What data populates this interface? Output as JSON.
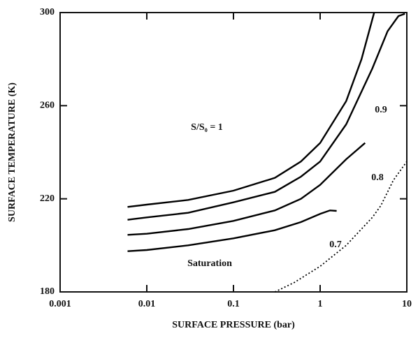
{
  "chart_data": {
    "type": "line",
    "xlabel": "SURFACE PRESSURE (bar)",
    "ylabel": "SURFACE TEMPERATURE (K)",
    "xscale": "log",
    "xlim": [
      0.001,
      10
    ],
    "xticks": [
      0.001,
      0.01,
      0.1,
      1,
      10
    ],
    "ylim": [
      180,
      300
    ],
    "yticks": [
      180,
      220,
      260,
      300
    ],
    "series": [
      {
        "name": "S/S₀ = 1",
        "color": "#000000",
        "style": "solid",
        "x": [
          0.006,
          0.01,
          0.03,
          0.1,
          0.3,
          0.6,
          1,
          2,
          3,
          4.2
        ],
        "values": [
          216.5,
          217.5,
          219.5,
          223.5,
          229,
          236,
          244,
          262,
          280,
          300
        ]
      },
      {
        "name": "0.9",
        "color": "#000000",
        "style": "solid",
        "x": [
          0.006,
          0.01,
          0.03,
          0.1,
          0.3,
          0.6,
          1,
          2,
          4,
          6,
          8,
          9.5
        ],
        "values": [
          211,
          212,
          214,
          218.5,
          223,
          229.5,
          236,
          252,
          276,
          292,
          298.5,
          299.5
        ]
      },
      {
        "name": "0.8",
        "color": "#000000",
        "style": "solid",
        "x": [
          0.006,
          0.01,
          0.03,
          0.1,
          0.3,
          0.6,
          1,
          2,
          3.3
        ],
        "values": [
          204.5,
          205,
          207,
          210.5,
          215,
          220,
          226,
          237,
          244
        ]
      },
      {
        "name": "0.7",
        "color": "#000000",
        "style": "solid",
        "x": [
          0.006,
          0.01,
          0.03,
          0.1,
          0.3,
          0.6,
          1,
          1.3,
          1.55
        ],
        "values": [
          197.5,
          198,
          200,
          203,
          206.5,
          210,
          213.5,
          215,
          214.8
        ]
      },
      {
        "name": "Saturation",
        "color": "#000000",
        "style": "dotted",
        "x": [
          0.3,
          0.5,
          1,
          2,
          4,
          5,
          7,
          10
        ],
        "values": [
          180,
          184,
          191,
          200,
          212,
          217,
          228,
          236
        ]
      }
    ]
  }
}
